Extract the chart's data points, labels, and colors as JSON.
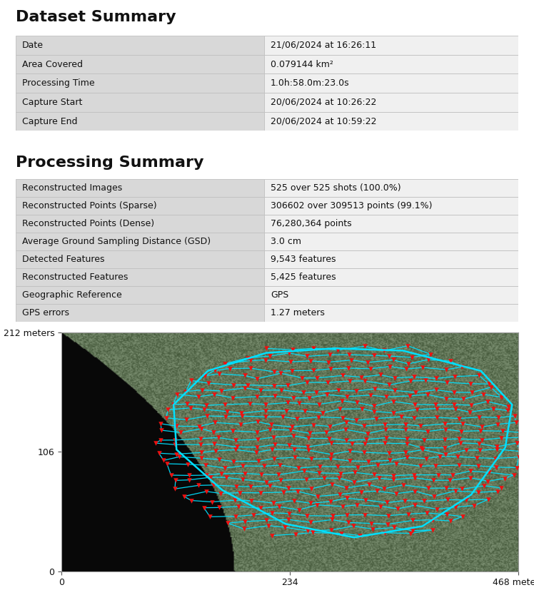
{
  "title1": "Dataset Summary",
  "title2": "Processing Summary",
  "dataset_rows": [
    [
      "Date",
      "21/06/2024 at 16:26:11"
    ],
    [
      "Area Covered",
      "0.079144 km²"
    ],
    [
      "Processing Time",
      "1.0h:58.0m:23.0s"
    ],
    [
      "Capture Start",
      "20/06/2024 at 10:26:22"
    ],
    [
      "Capture End",
      "20/06/2024 at 10:59:22"
    ]
  ],
  "processing_rows": [
    [
      "Reconstructed Images",
      "525 over 525 shots (100.0%)"
    ],
    [
      "Reconstructed Points (Sparse)",
      "306602 over 309513 points (99.1%)"
    ],
    [
      "Reconstructed Points (Dense)",
      "76,280,364 points"
    ],
    [
      "Average Ground Sampling Distance (GSD)",
      "3.0 cm"
    ],
    [
      "Detected Features",
      "9,543 features"
    ],
    [
      "Reconstructed Features",
      "5,425 features"
    ],
    [
      "Geographic Reference",
      "GPS"
    ],
    [
      "GPS errors",
      "1.27 meters"
    ]
  ],
  "table_left_bg": "#d8d8d8",
  "table_right_bg": "#f0f0f0",
  "table_border": "#c0c0c0",
  "text_color": "#111111",
  "background_color": "#ffffff",
  "map_xlim": [
    0,
    468
  ],
  "map_ylim": [
    0,
    212
  ],
  "map_xticks": [
    0,
    234,
    468
  ],
  "map_yticks": [
    0,
    106,
    212
  ],
  "flight_path_color": "#00e0ff",
  "marker_color": "#ee1111",
  "font_family": "DejaVu Sans",
  "title_fontsize": 16,
  "row_fontsize": 9
}
